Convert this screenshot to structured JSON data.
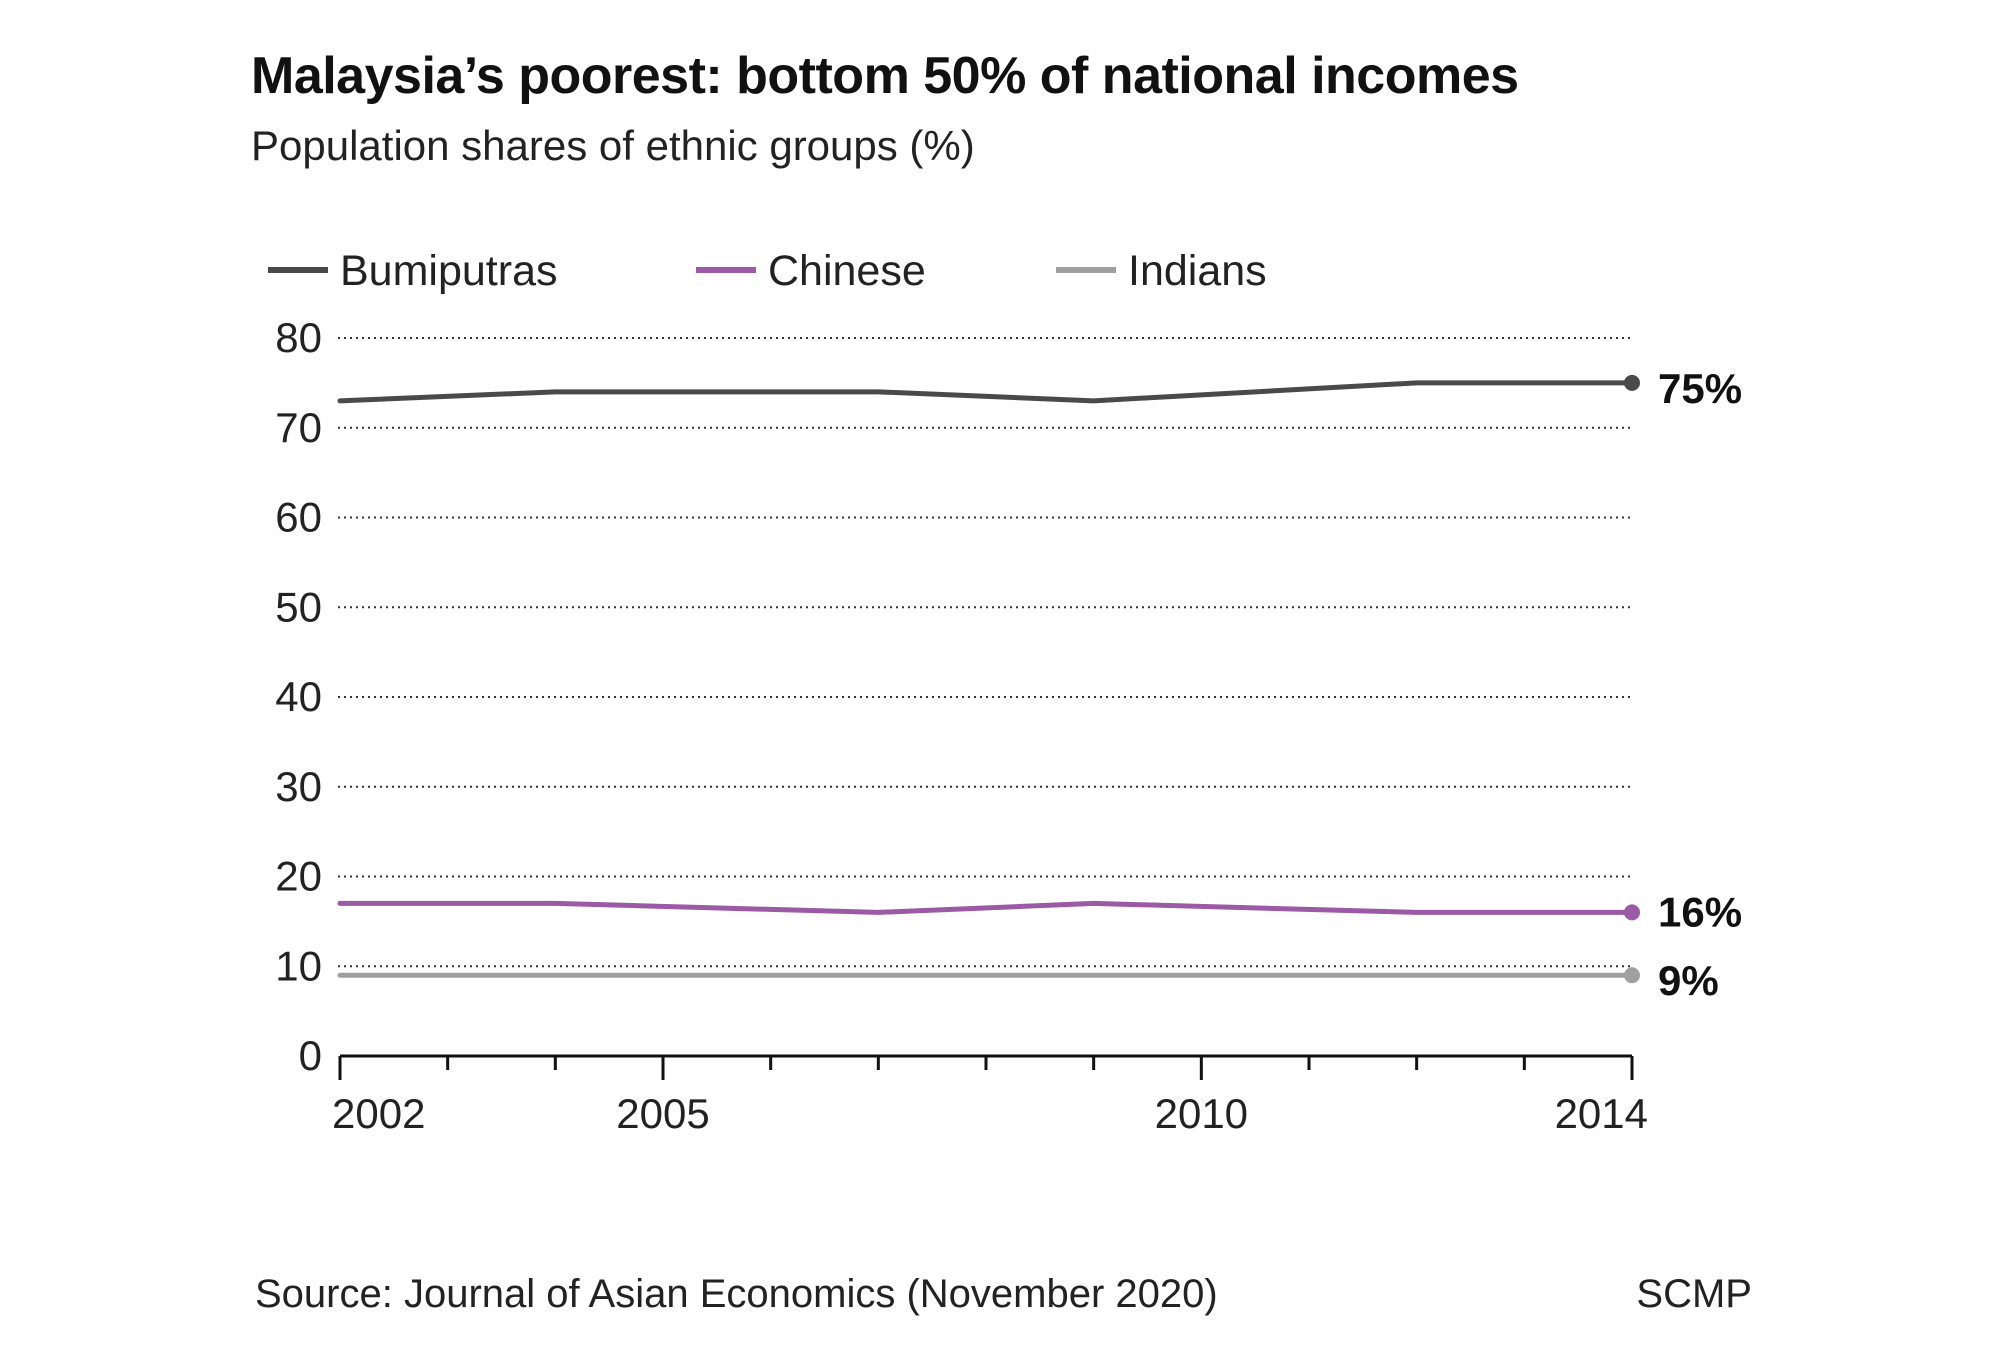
{
  "header": {
    "title": "Malaysia’s poorest: bottom 50% of national incomes",
    "subtitle": "Population shares of ethnic groups (%)"
  },
  "footer": {
    "source": "Source: Journal of Asian Economics (November 2020)",
    "credit": "SCMP"
  },
  "chart_data": {
    "type": "line",
    "title": "Malaysia’s poorest: bottom 50% of national incomes",
    "subtitle": "Population shares of ethnic groups (%)",
    "xlabel": "",
    "ylabel": "",
    "x": [
      2002,
      2004,
      2007,
      2009,
      2012,
      2014
    ],
    "xlim": [
      2002,
      2014
    ],
    "x_ticks": [
      2002,
      2005,
      2010,
      2014
    ],
    "ylim": [
      0,
      80
    ],
    "y_ticks": [
      0,
      10,
      20,
      30,
      40,
      50,
      60,
      70,
      80
    ],
    "grid": true,
    "grid_style": "dotted horizontal",
    "legend_position": "top",
    "series": [
      {
        "name": "Bumiputras",
        "color": "#4a4a4a",
        "values": [
          73,
          74,
          74,
          73,
          75,
          75
        ],
        "end_label": "75%"
      },
      {
        "name": "Chinese",
        "color": "#9b59a6",
        "values": [
          17,
          17,
          16,
          17,
          16,
          16
        ],
        "end_label": "16%"
      },
      {
        "name": "Indians",
        "color": "#a0a0a0",
        "values": [
          9,
          9,
          9,
          9,
          9,
          9
        ],
        "end_label": "9%"
      }
    ]
  }
}
